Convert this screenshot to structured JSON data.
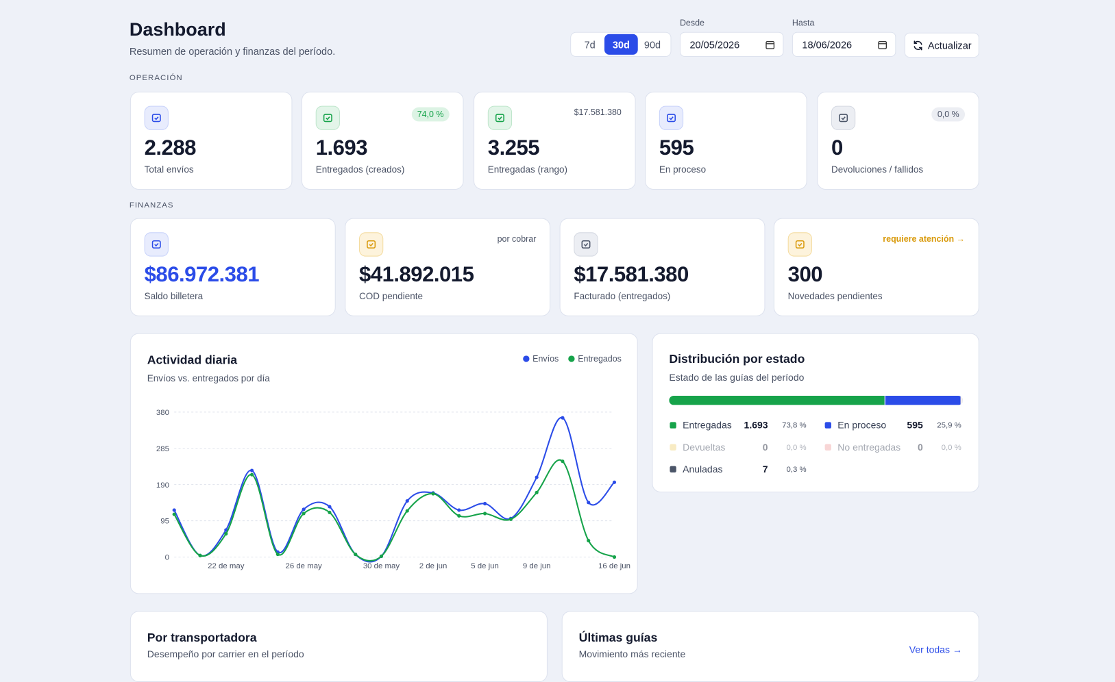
{
  "header": {
    "title": "Dashboard",
    "subtitle": "Resumen de operación y finanzas del período.",
    "ranges": [
      "7d",
      "30d",
      "90d"
    ],
    "active_range": 1,
    "from_label": "Desde",
    "from": "20/05/2026",
    "to_label": "Hasta",
    "to": "18/06/2026",
    "refresh": "Actualizar"
  },
  "operation": {
    "title": "OPERACIÓN",
    "cards": [
      {
        "value": "2.288",
        "label": "Total envíos"
      },
      {
        "value": "1.693",
        "label": "Entregados (creados)",
        "badge": "74,0 %"
      },
      {
        "value": "3.255",
        "label": "Entregadas (rango)",
        "badge": "$17.581.380"
      },
      {
        "value": "595",
        "label": "En proceso"
      },
      {
        "value": "0",
        "label": "Devoluciones / fallidos",
        "badge": "0,0 %"
      }
    ]
  },
  "finance": {
    "title": "FINANZAS",
    "cards": [
      {
        "value": "$86.972.381",
        "label": "Saldo billetera"
      },
      {
        "value": "$41.892.015",
        "label": "COD pendiente",
        "badge": "por cobrar"
      },
      {
        "value": "$17.581.380",
        "label": "Facturado (entregados)"
      },
      {
        "value": "300",
        "label": "Novedades pendientes",
        "badge": "requiere atención →"
      }
    ]
  },
  "chart_data": {
    "type": "line",
    "title": "Actividad diaria",
    "subtitle": "Envíos vs. entregados por día",
    "categories": [
      null,
      null,
      "22 de may",
      null,
      null,
      "26 de may",
      null,
      null,
      "30 de may",
      null,
      "2 de jun",
      null,
      "5 de jun",
      null,
      "9 de jun",
      null,
      null,
      "16 de jun"
    ],
    "series": [
      {
        "name": "Envíos",
        "color": "#2b4ce8",
        "values": [
          123,
          4,
          71,
          227,
          13,
          125,
          132,
          7,
          2,
          147,
          168,
          123,
          140,
          101,
          209,
          365,
          143,
          196
        ]
      },
      {
        "name": "Entregados",
        "color": "#16a34a",
        "values": [
          112,
          4,
          61,
          216,
          7,
          114,
          117,
          7,
          2,
          121,
          166,
          108,
          114,
          99,
          169,
          251,
          43,
          0
        ]
      }
    ],
    "ylim": [
      0,
      380
    ],
    "yticks": [
      0,
      95,
      190,
      285,
      380
    ],
    "grid": true
  },
  "distribution": {
    "title": "Distribución por estado",
    "subtitle": "Estado de las guías del período",
    "items": [
      {
        "name": "Entregadas",
        "color": "#16a34a",
        "value": 1693,
        "value_label": "1.693",
        "percent": 73.8,
        "percent_label": "73,8 %"
      },
      {
        "name": "En proceso",
        "color": "#2b4ce8",
        "value": 595,
        "value_label": "595",
        "percent": 25.9,
        "percent_label": "25,9 %"
      },
      {
        "name": "Devueltas",
        "color": "#f0d27a",
        "value": 0,
        "value_label": "0",
        "percent": 0.0,
        "percent_label": "0,0 %"
      },
      {
        "name": "No entregadas",
        "color": "#f0a3a3",
        "value": 0,
        "value_label": "0",
        "percent": 0.0,
        "percent_label": "0,0 %"
      },
      {
        "name": "Anuladas",
        "color": "#4b5568",
        "value": 7,
        "value_label": "7",
        "percent": 0.3,
        "percent_label": "0,3 %"
      }
    ]
  },
  "carriers": {
    "title": "Por transportadora",
    "subtitle": "Desempeño por carrier en el período"
  },
  "recent": {
    "title": "Últimas guías",
    "subtitle": "Movimiento más reciente",
    "link": "Ver todas →"
  }
}
